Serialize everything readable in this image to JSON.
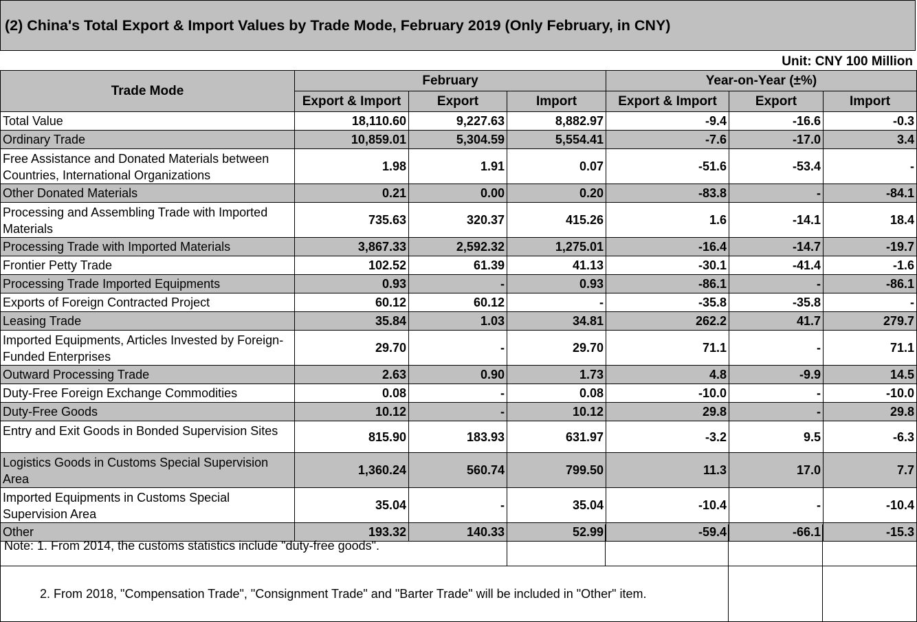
{
  "title": "(2) China's Total Export & Import Values by Trade Mode, February 2019 (Only February, in CNY)",
  "unit": "Unit: CNY 100 Million",
  "headers": {
    "trade_mode": "Trade Mode",
    "february": "February",
    "yoy": "Year-on-Year (±%)",
    "sub": [
      "Export & Import",
      "Export",
      "Import",
      "Export & Import",
      "Export",
      "Import"
    ]
  },
  "rows": [
    {
      "name": "Total Value",
      "v": [
        "18,110.60",
        "9,227.63",
        "8,882.97",
        "-9.4",
        "-16.6",
        "-0.3"
      ]
    },
    {
      "name": "Ordinary Trade",
      "v": [
        "10,859.01",
        "5,304.59",
        "5,554.41",
        "-7.6",
        "-17.0",
        "3.4"
      ]
    },
    {
      "name": "Free Assistance and Donated Materials between Countries, International Organizations",
      "v": [
        "1.98",
        "1.91",
        "0.07",
        "-51.6",
        "-53.4",
        "-"
      ]
    },
    {
      "name": "Other Donated Materials",
      "v": [
        "0.21",
        "0.00",
        "0.20",
        "-83.8",
        "-",
        "-84.1"
      ]
    },
    {
      "name": "Processing and Assembling Trade with Imported Materials",
      "v": [
        "735.63",
        "320.37",
        "415.26",
        "1.6",
        "-14.1",
        "18.4"
      ]
    },
    {
      "name": "Processing Trade with Imported Materials",
      "v": [
        "3,867.33",
        "2,592.32",
        "1,275.01",
        "-16.4",
        "-14.7",
        "-19.7"
      ]
    },
    {
      "name": "Frontier Petty Trade",
      "v": [
        "102.52",
        "61.39",
        "41.13",
        "-30.1",
        "-41.4",
        "-1.6"
      ]
    },
    {
      "name": "Processing Trade Imported Equipments",
      "v": [
        "0.93",
        "-",
        "0.93",
        "-86.1",
        "-",
        "-86.1"
      ]
    },
    {
      "name": "Exports of Foreign Contracted Project",
      "v": [
        "60.12",
        "60.12",
        "-",
        "-35.8",
        "-35.8",
        "-"
      ]
    },
    {
      "name": "Leasing Trade",
      "v": [
        "35.84",
        "1.03",
        "34.81",
        "262.2",
        "41.7",
        "279.7"
      ]
    },
    {
      "name": "Imported Equipments, Articles Invested by Foreign-Funded Enterprises",
      "v": [
        "29.70",
        "-",
        "29.70",
        "71.1",
        "-",
        "71.1"
      ]
    },
    {
      "name": "Outward Processing Trade",
      "v": [
        "2.63",
        "0.90",
        "1.73",
        "4.8",
        "-9.9",
        "14.5"
      ]
    },
    {
      "name": "Duty-Free Foreign Exchange Commodities",
      "v": [
        "0.08",
        "-",
        "0.08",
        "-10.0",
        "-",
        "-10.0"
      ]
    },
    {
      "name": "Duty-Free Goods",
      "v": [
        "10.12",
        "-",
        "10.12",
        "29.8",
        "-",
        "29.8"
      ]
    },
    {
      "name": "Entry and Exit Goods in Bonded Supervision Sites",
      "v": [
        "815.90",
        "183.93",
        "631.97",
        "-3.2",
        "9.5",
        "-6.3"
      ]
    },
    {
      "name": "Logistics Goods in Customs Special Supervision Area",
      "v": [
        "1,360.24",
        "560.74",
        "799.50",
        "11.3",
        "17.0",
        "7.7"
      ]
    },
    {
      "name": "Imported Equipments in Customs Special Supervision Area",
      "v": [
        "35.04",
        "-",
        "35.04",
        "-10.4",
        "-",
        "-10.4"
      ]
    },
    {
      "name": "Other",
      "v": [
        "193.32",
        "140.33",
        "52.99",
        "-59.4",
        "-66.1",
        "-15.3"
      ]
    }
  ],
  "notes": [
    "Note: 1. From 2014, the customs statistics include \"duty-free goods\".",
    "2. From 2018, \"Compensation Trade\", \"Consignment Trade\" and \"Barter Trade\" will be included in \"Other\" item."
  ]
}
